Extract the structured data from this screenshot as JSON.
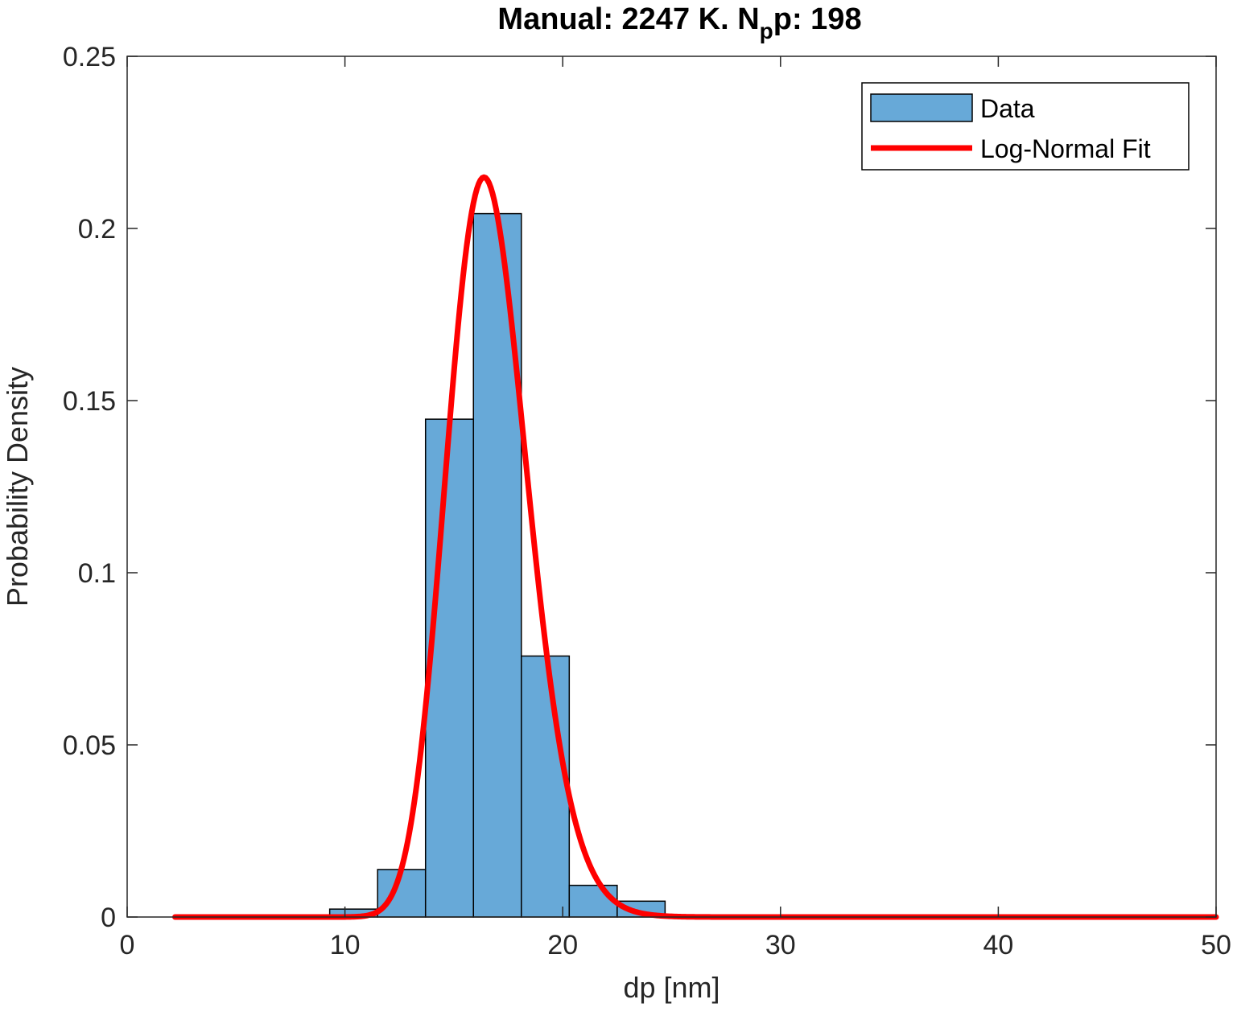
{
  "chart_data": {
    "type": "bar",
    "title_parts": {
      "before": "Manual: 2247 K. N",
      "subscript": "p",
      "after": "p: 198"
    },
    "xlabel": "dp [nm]",
    "ylabel": "Probability Density",
    "xlim": [
      0,
      50
    ],
    "ylim": [
      0,
      0.25
    ],
    "xticks": [
      0,
      10,
      20,
      30,
      40,
      50
    ],
    "xtick_labels": [
      "0",
      "10",
      "20",
      "30",
      "40",
      "50"
    ],
    "yticks": [
      0,
      0.05,
      0.1,
      0.15,
      0.2,
      0.25
    ],
    "ytick_labels": [
      "0",
      "0.05",
      "0.1",
      "0.15",
      "0.2",
      "0.25"
    ],
    "grid": false,
    "legend_position": "top-right",
    "series": [
      {
        "name": "Data",
        "kind": "histogram",
        "color": "#67a9d8",
        "bins": [
          {
            "x0": 9.3,
            "x1": 11.5,
            "value": 0.0023
          },
          {
            "x0": 11.5,
            "x1": 13.7,
            "value": 0.0138
          },
          {
            "x0": 13.7,
            "x1": 15.9,
            "value": 0.1446
          },
          {
            "x0": 15.9,
            "x1": 18.1,
            "value": 0.2043
          },
          {
            "x0": 18.1,
            "x1": 20.3,
            "value": 0.0758
          },
          {
            "x0": 20.3,
            "x1": 22.5,
            "value": 0.0092
          },
          {
            "x0": 22.5,
            "x1": 24.7,
            "value": 0.0046
          }
        ]
      },
      {
        "name": "Log-Normal Fit",
        "kind": "line",
        "color": "#ff0000",
        "x_range": [
          2.2,
          50
        ],
        "mu_log": 2.809,
        "sigma_log": 0.1126
      }
    ]
  }
}
